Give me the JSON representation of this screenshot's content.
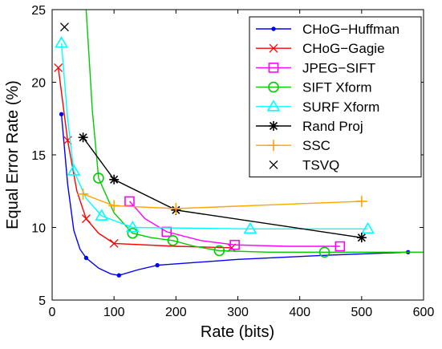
{
  "chart_data": {
    "type": "line",
    "title": "",
    "xlabel": "Rate (bits)",
    "ylabel": "Equal Error Rate (%)",
    "xlim": [
      0,
      600
    ],
    "ylim": [
      5,
      25
    ],
    "xticks": [
      0,
      100,
      200,
      300,
      400,
      500,
      600
    ],
    "yticks": [
      5,
      10,
      15,
      20,
      25
    ],
    "grid": false,
    "legend_position": "top-right",
    "series": [
      {
        "name": "CHoG−Huffman",
        "color": "#0000ff",
        "marker": "dot",
        "x": [
          15,
          55,
          108,
          170,
          575
        ],
        "y": [
          17.8,
          7.9,
          6.7,
          7.4,
          8.3
        ],
        "curve": [
          [
            15,
            17.8
          ],
          [
            25,
            13
          ],
          [
            35,
            9.8
          ],
          [
            45,
            8.5
          ],
          [
            55,
            7.9
          ],
          [
            75,
            7.2
          ],
          [
            95,
            6.8
          ],
          [
            108,
            6.7
          ],
          [
            140,
            7.1
          ],
          [
            170,
            7.4
          ],
          [
            300,
            7.8
          ],
          [
            450,
            8.1
          ],
          [
            575,
            8.3
          ]
        ]
      },
      {
        "name": "CHoG−Gagie",
        "color": "#ff0000",
        "marker": "x",
        "x": [
          10,
          25,
          55,
          100,
          290
        ],
        "y": [
          21.0,
          16.0,
          10.6,
          8.9,
          8.6
        ],
        "curve": [
          [
            10,
            21.0
          ],
          [
            25,
            16.0
          ],
          [
            40,
            12.5
          ],
          [
            55,
            10.6
          ],
          [
            75,
            9.6
          ],
          [
            100,
            8.9
          ],
          [
            200,
            8.7
          ],
          [
            290,
            8.6
          ]
        ]
      },
      {
        "name": "JPEG−SIFT",
        "color": "#ff00ff",
        "marker": "square",
        "x": [
          125,
          185,
          295,
          465
        ],
        "y": [
          11.8,
          9.7,
          8.8,
          8.7
        ],
        "curve": [
          [
            125,
            11.8
          ],
          [
            150,
            10.6
          ],
          [
            185,
            9.7
          ],
          [
            240,
            9.1
          ],
          [
            295,
            8.8
          ],
          [
            380,
            8.7
          ],
          [
            465,
            8.7
          ]
        ]
      },
      {
        "name": "SIFT Xform",
        "color": "#00cc00",
        "marker": "circle",
        "x": [
          75,
          130,
          195,
          270,
          440
        ],
        "y": [
          13.4,
          9.6,
          9.1,
          8.4,
          8.3
        ],
        "curve": [
          [
            55,
            25.0
          ],
          [
            65,
            18
          ],
          [
            75,
            13.4
          ],
          [
            100,
            11
          ],
          [
            130,
            9.6
          ],
          [
            160,
            9.3
          ],
          [
            195,
            9.1
          ],
          [
            230,
            8.7
          ],
          [
            270,
            8.4
          ],
          [
            350,
            8.3
          ],
          [
            440,
            8.3
          ],
          [
            600,
            8.3
          ]
        ]
      },
      {
        "name": "SURF Xform",
        "color": "#00ffff",
        "marker": "triangle",
        "x": [
          15,
          35,
          80,
          130,
          320,
          510
        ],
        "y": [
          22.7,
          13.9,
          10.8,
          10.0,
          9.9,
          9.9
        ],
        "curve": [
          [
            15,
            22.7
          ],
          [
            25,
            17.5
          ],
          [
            35,
            13.9
          ],
          [
            55,
            12.0
          ],
          [
            80,
            10.8
          ],
          [
            130,
            10.0
          ],
          [
            320,
            9.9
          ],
          [
            510,
            9.9
          ]
        ]
      },
      {
        "name": "Rand Proj",
        "color": "#000000",
        "marker": "star",
        "x": [
          50,
          100,
          200,
          500
        ],
        "y": [
          16.2,
          13.3,
          11.2,
          9.3
        ],
        "curve": [
          [
            50,
            16.2
          ],
          [
            100,
            13.3
          ],
          [
            200,
            11.2
          ],
          [
            500,
            9.3
          ]
        ]
      },
      {
        "name": "SSC",
        "color": "#ffa500",
        "marker": "plus",
        "x": [
          50,
          100,
          200,
          500
        ],
        "y": [
          12.3,
          11.5,
          11.3,
          11.8
        ],
        "curve": [
          [
            50,
            12.3
          ],
          [
            100,
            11.5
          ],
          [
            200,
            11.3
          ],
          [
            500,
            11.8
          ]
        ]
      },
      {
        "name": "TSVQ",
        "color": "#000000",
        "marker": "x",
        "x": [
          20
        ],
        "y": [
          23.8
        ],
        "curve": []
      }
    ]
  }
}
